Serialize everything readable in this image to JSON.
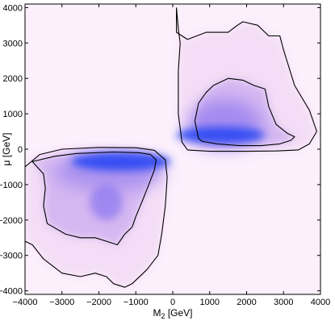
{
  "chart_data": {
    "type": "heatmap",
    "title": "",
    "x_axis": {
      "label_main": "M",
      "label_sub": "2",
      "label_unit": " [GeV]",
      "range": [
        -4000,
        4000
      ],
      "ticks": [
        -4000,
        -3000,
        -2000,
        -1000,
        0,
        1000,
        2000,
        3000,
        4000
      ],
      "tick_labels": [
        "−4000",
        "−3000",
        "−2000",
        "−1000",
        "0",
        "1000",
        "2000",
        "3000",
        "4000"
      ]
    },
    "y_axis": {
      "label": "μ [GeV]",
      "range": [
        -4100,
        4100
      ],
      "ticks": [
        -4000,
        -3000,
        -2000,
        -1000,
        0,
        1000,
        2000,
        3000,
        4000
      ],
      "tick_labels": [
        "−4000",
        "−3000",
        "−2000",
        "−1000",
        "0",
        "1000",
        "2000",
        "3000",
        "4000"
      ]
    },
    "grid": false,
    "colors": {
      "background": "#fcf0fc",
      "low": "#f3dcf6",
      "mid": "#d2b4f1",
      "high": "#8d78ef",
      "peak": "#2f4bf2",
      "contour": "#000000"
    },
    "density_regions": [
      {
        "name": "positive-mu",
        "x_range": [
          150,
          3900
        ],
        "y_range": [
          -50,
          3600
        ],
        "peak": {
          "x": 1300,
          "y": 400
        }
      },
      {
        "name": "negative-mu",
        "x_range": [
          -4000,
          -150
        ],
        "y_range": [
          -3950,
          0
        ],
        "peak": {
          "x": -1400,
          "y": -350
        },
        "secondary_peak": {
          "x": -1800,
          "y": -1500
        }
      }
    ],
    "contours": [
      {
        "name": "upper-outer",
        "points": [
          [
            100,
            4000
          ],
          [
            100,
            3300
          ],
          [
            400,
            3100
          ],
          [
            900,
            3300
          ],
          [
            1500,
            3300
          ],
          [
            1750,
            3500
          ],
          [
            1900,
            3600
          ],
          [
            2300,
            3500
          ],
          [
            2600,
            3200
          ],
          [
            2900,
            3200
          ],
          [
            3000,
            2800
          ],
          [
            3300,
            1800
          ],
          [
            3700,
            1100
          ],
          [
            3900,
            500
          ],
          [
            3700,
            150
          ],
          [
            3400,
            -20
          ],
          [
            2800,
            -50
          ],
          [
            2000,
            -60
          ],
          [
            1000,
            -60
          ],
          [
            400,
            -20
          ],
          [
            250,
            200
          ],
          [
            150,
            1000
          ],
          [
            150,
            2200
          ],
          [
            200,
            3000
          ],
          [
            150,
            3400
          ],
          [
            100,
            4000
          ]
        ]
      },
      {
        "name": "upper-inner",
        "points": [
          [
            700,
            300
          ],
          [
            600,
            800
          ],
          [
            700,
            1300
          ],
          [
            900,
            1600
          ],
          [
            1100,
            1800
          ],
          [
            1500,
            2000
          ],
          [
            1900,
            1950
          ],
          [
            2200,
            1800
          ],
          [
            2500,
            1700
          ],
          [
            2600,
            1200
          ],
          [
            2800,
            700
          ],
          [
            3100,
            450
          ],
          [
            3300,
            350
          ],
          [
            3200,
            250
          ],
          [
            2900,
            150
          ],
          [
            2400,
            100
          ],
          [
            1800,
            100
          ],
          [
            1200,
            150
          ],
          [
            800,
            220
          ],
          [
            700,
            300
          ]
        ]
      },
      {
        "name": "lower-outer",
        "points": [
          [
            -4000,
            -500
          ],
          [
            -3600,
            -150
          ],
          [
            -3000,
            0
          ],
          [
            -2000,
            50
          ],
          [
            -1000,
            40
          ],
          [
            -500,
            -30
          ],
          [
            -200,
            -300
          ],
          [
            -150,
            -800
          ],
          [
            -200,
            -1600
          ],
          [
            -300,
            -2400
          ],
          [
            -400,
            -3000
          ],
          [
            -700,
            -3400
          ],
          [
            -1100,
            -3800
          ],
          [
            -1300,
            -3900
          ],
          [
            -1600,
            -3800
          ],
          [
            -1800,
            -3600
          ],
          [
            -2100,
            -3500
          ],
          [
            -2500,
            -3600
          ],
          [
            -3000,
            -3500
          ],
          [
            -3500,
            -3100
          ],
          [
            -3800,
            -2700
          ],
          [
            -4000,
            -2600
          ]
        ]
      },
      {
        "name": "lower-inner",
        "points": [
          [
            -3800,
            -350
          ],
          [
            -3200,
            -200
          ],
          [
            -2600,
            -120
          ],
          [
            -1600,
            -80
          ],
          [
            -900,
            -100
          ],
          [
            -600,
            -150
          ],
          [
            -450,
            -300
          ],
          [
            -500,
            -600
          ],
          [
            -650,
            -1000
          ],
          [
            -800,
            -1400
          ],
          [
            -1000,
            -1900
          ],
          [
            -1100,
            -2200
          ],
          [
            -1300,
            -2400
          ],
          [
            -1500,
            -2700
          ],
          [
            -1800,
            -2600
          ],
          [
            -2100,
            -2500
          ],
          [
            -2500,
            -2500
          ],
          [
            -2900,
            -2400
          ],
          [
            -3400,
            -2100
          ],
          [
            -3500,
            -1600
          ],
          [
            -3450,
            -1100
          ],
          [
            -3500,
            -700
          ],
          [
            -3800,
            -350
          ]
        ]
      }
    ]
  }
}
